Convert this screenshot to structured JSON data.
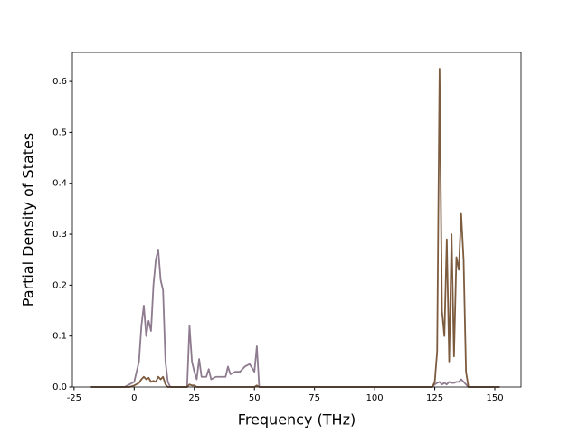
{
  "chart_data": {
    "type": "line",
    "xlabel": "Frequency (THz)",
    "ylabel": "Partial Density of States",
    "x": [
      -18,
      -4,
      -2,
      0,
      2,
      3,
      4,
      5,
      6,
      7,
      8,
      9,
      10,
      11,
      12,
      13,
      14,
      15,
      20,
      22,
      23,
      24,
      25,
      26,
      27,
      28,
      30,
      31,
      32,
      34,
      36,
      38,
      39,
      40,
      42,
      44,
      46,
      48,
      50,
      51,
      52,
      60,
      124,
      125,
      126,
      127,
      128,
      129,
      130,
      131,
      132,
      133,
      134,
      135,
      136,
      137,
      138,
      139,
      140,
      152
    ],
    "series": [
      {
        "color": "#8e7b8f",
        "values": [
          0,
          0,
          0.005,
          0.01,
          0.05,
          0.12,
          0.16,
          0.1,
          0.13,
          0.11,
          0.2,
          0.25,
          0.27,
          0.21,
          0.19,
          0.05,
          0.01,
          0,
          0,
          0,
          0.12,
          0.05,
          0.03,
          0.015,
          0.055,
          0.02,
          0.02,
          0.035,
          0.015,
          0.02,
          0.02,
          0.02,
          0.04,
          0.025,
          0.03,
          0.03,
          0.04,
          0.045,
          0.03,
          0.08,
          0,
          0,
          0,
          0.005,
          0.008,
          0.01,
          0.005,
          0.008,
          0.005,
          0.01,
          0.008,
          0.008,
          0.01,
          0.01,
          0.015,
          0.01,
          0.005,
          0,
          0,
          0
        ]
      },
      {
        "color": "#7d5b3e",
        "values": [
          0,
          0,
          0,
          0.003,
          0.008,
          0.015,
          0.02,
          0.015,
          0.018,
          0.01,
          0.012,
          0.01,
          0.02,
          0.015,
          0.02,
          0.005,
          0,
          0,
          0,
          0,
          0.005,
          0.003,
          0.003,
          0,
          0,
          0,
          0,
          0,
          0,
          0,
          0,
          0,
          0,
          0,
          0,
          0,
          0,
          0,
          0,
          0.003,
          0,
          0,
          0,
          0.01,
          0.07,
          0.625,
          0.15,
          0.1,
          0.29,
          0.05,
          0.3,
          0.06,
          0.255,
          0.23,
          0.34,
          0.25,
          0.03,
          0,
          0,
          0
        ]
      }
    ],
    "xlim": [
      -25.7,
      160.9
    ],
    "ylim": [
      0,
      0.657
    ],
    "xticks": [
      -25,
      0,
      25,
      50,
      75,
      100,
      125,
      150
    ],
    "yticks": [
      {
        "value": 0,
        "label": "0.0"
      },
      0.1,
      0.2,
      0.3,
      0.4,
      0.5,
      0.6
    ]
  }
}
